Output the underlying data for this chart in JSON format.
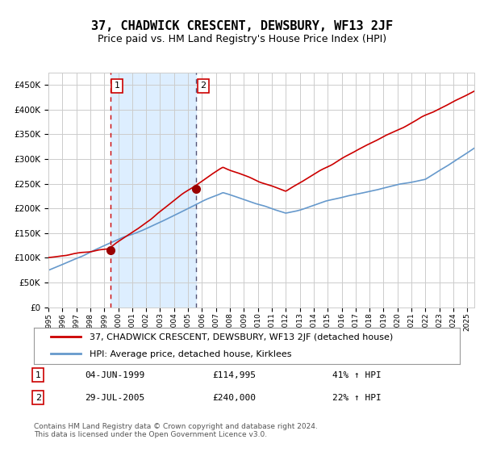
{
  "title": "37, CHADWICK CRESCENT, DEWSBURY, WF13 2JF",
  "subtitle": "Price paid vs. HM Land Registry's House Price Index (HPI)",
  "legend_line1": "37, CHADWICK CRESCENT, DEWSBURY, WF13 2JF (detached house)",
  "legend_line2": "HPI: Average price, detached house, Kirklees",
  "footnote": "Contains HM Land Registry data © Crown copyright and database right 2024.\nThis data is licensed under the Open Government Licence v3.0.",
  "transaction1_date": "04-JUN-1999",
  "transaction1_price": 114995,
  "transaction1_label": "41% ↑ HPI",
  "transaction2_date": "29-JUL-2005",
  "transaction2_price": 240000,
  "transaction2_label": "22% ↑ HPI",
  "sale1_x": 1999.42,
  "sale1_y": 114995,
  "sale2_x": 2005.57,
  "sale2_y": 240000,
  "vline1_x": 1999.42,
  "vline2_x": 2005.57,
  "shade_start": 1999.42,
  "shade_end": 2005.57,
  "ylim": [
    0,
    475000
  ],
  "xlim_start": 1995.0,
  "xlim_end": 2025.5,
  "red_line_color": "#cc0000",
  "blue_line_color": "#6699cc",
  "shade_color": "#ddeeff",
  "vline1_color": "#cc0000",
  "vline2_color": "#555577",
  "dot_color": "#990000",
  "background_color": "#ffffff",
  "grid_color": "#cccccc",
  "title_fontsize": 11,
  "subtitle_fontsize": 9,
  "axis_fontsize": 8,
  "legend_fontsize": 8,
  "footnote_fontsize": 6.5
}
